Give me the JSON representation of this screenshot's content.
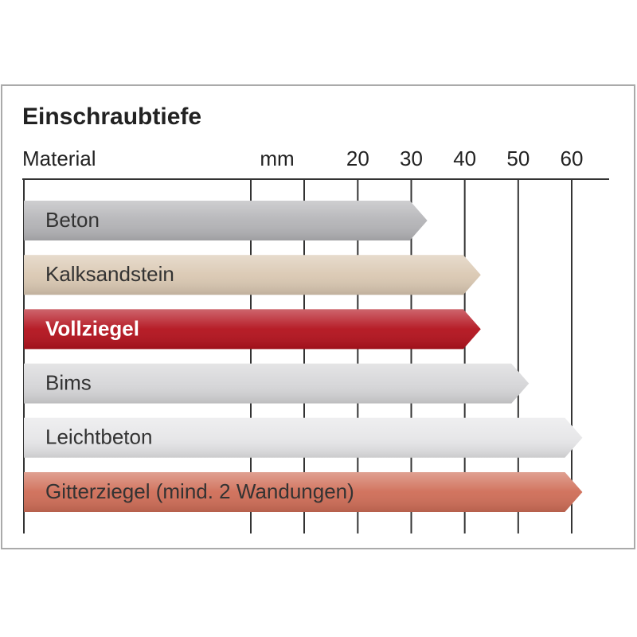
{
  "chart_data": {
    "type": "bar",
    "title": "Einschraubtiefe",
    "category_label": "Material",
    "x_label": "mm",
    "categories": [
      "Beton",
      "Kalksandstein",
      "Vollziegel",
      "Bims",
      "Leichtbeton",
      "Gitterziegel (mind. 2 Wandungen)"
    ],
    "values": [
      33,
      43,
      43,
      52,
      62,
      62
    ],
    "colors": [
      "#b4b4b7",
      "#dac8b2",
      "#b3121d",
      "#d6d6d8",
      "#e6e6e8",
      "#cf6d57"
    ],
    "text_colors": [
      "#333333",
      "#333333",
      "#ffffff",
      "#333333",
      "#333333",
      "#333333"
    ],
    "xlim": [
      0,
      67
    ],
    "xticks": [
      20,
      30,
      40,
      50,
      60
    ],
    "grid": true
  }
}
